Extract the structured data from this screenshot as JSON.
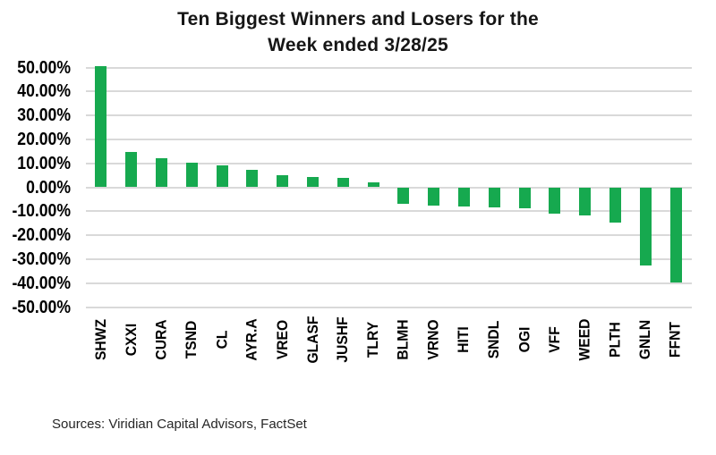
{
  "chart": {
    "title_line1": "Ten Biggest Winners and Losers for the",
    "title_line2": "Week ended 3/28/25",
    "source_note": "Sources: Viridian Capital Advisors, FactSet"
  },
  "chart_data": {
    "type": "bar",
    "title": "Ten Biggest Winners and Losers for the Week ended 3/28/25",
    "categories": [
      "SHWZ",
      "CXXI",
      "CURA",
      "TSND",
      "CL",
      "AYR.A",
      "VREO",
      "GLASF",
      "JUSHF",
      "TLRY",
      "BLMH",
      "VRNO",
      "HITI",
      "SNDL",
      "OGI",
      "VFF",
      "WEED",
      "PLTH",
      "GNLN",
      "FFNT"
    ],
    "values": [
      50.4,
      14.9,
      12.2,
      10.2,
      9.3,
      7.3,
      5.1,
      4.2,
      4.1,
      2.0,
      -7.0,
      -7.8,
      -8.2,
      -8.3,
      -8.7,
      -10.9,
      -11.8,
      -14.7,
      -32.7,
      -39.8
    ],
    "unit": "%",
    "xlabel": "",
    "ylabel": "",
    "ylim": [
      -50,
      50
    ],
    "ytick_values": [
      50,
      40,
      30,
      20,
      10,
      0,
      -10,
      -20,
      -30,
      -40,
      -50
    ],
    "ytick_labels": [
      "50.00%",
      "40.00%",
      "30.00%",
      "20.00%",
      "10.00%",
      "0.00%",
      "-10.00%",
      "-20.00%",
      "-30.00%",
      "-40.00%",
      "-50.00%"
    ],
    "grid": true,
    "legend": "none",
    "bar_color": "#16A94F",
    "gridline_color": "#D9D9D9",
    "x_labels_rotation": -90
  }
}
